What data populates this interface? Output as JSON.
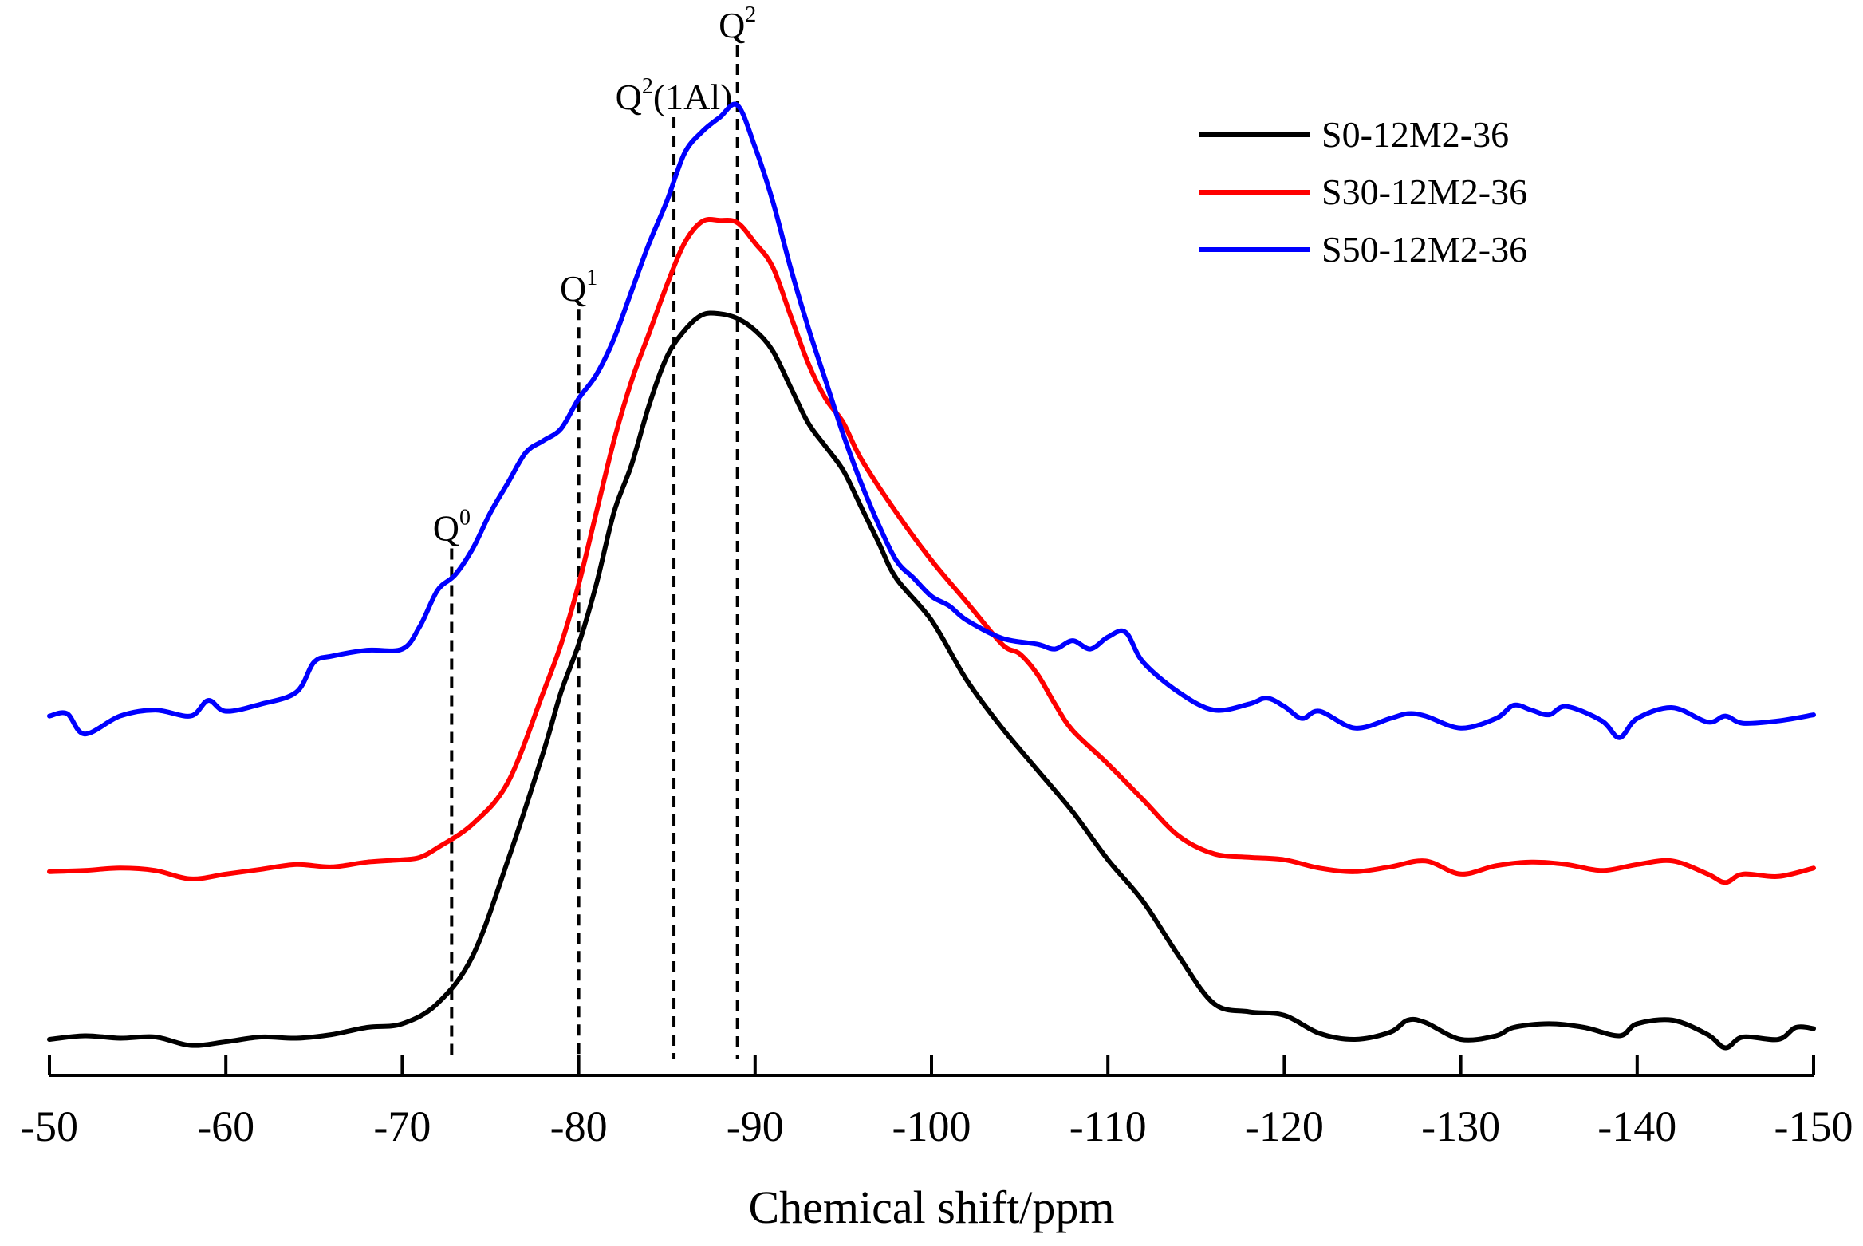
{
  "chart_data": {
    "type": "line",
    "title": "",
    "xlabel": "Chemical shift/ppm",
    "ylabel": "",
    "xlim": [
      -50,
      -150
    ],
    "x_ticks": [
      -50,
      -60,
      -70,
      -80,
      -90,
      -100,
      -110,
      -120,
      -130,
      -140,
      -150
    ],
    "x_tick_labels": [
      "-50",
      "-60",
      "-70",
      "-80",
      "-90",
      "-100",
      "-110",
      "-120",
      "-130",
      "-140",
      "-150"
    ],
    "ylim": [
      0,
      85
    ],
    "legend_position": "top-right",
    "series": [
      {
        "name": "S0-12M2-36",
        "color": "#000000",
        "points": [
          [
            -50,
            3
          ],
          [
            -52,
            3.3
          ],
          [
            -54,
            3.1
          ],
          [
            -56,
            3.2
          ],
          [
            -58,
            2.5
          ],
          [
            -60,
            2.8
          ],
          [
            -62,
            3.2
          ],
          [
            -64,
            3.1
          ],
          [
            -66,
            3.4
          ],
          [
            -68,
            4
          ],
          [
            -70,
            4.3
          ],
          [
            -72,
            6
          ],
          [
            -74,
            10
          ],
          [
            -76,
            18
          ],
          [
            -78,
            27
          ],
          [
            -79,
            32
          ],
          [
            -80,
            36
          ],
          [
            -81,
            41
          ],
          [
            -82,
            47
          ],
          [
            -83,
            51
          ],
          [
            -84,
            56
          ],
          [
            -85,
            60
          ],
          [
            -86,
            62.2
          ],
          [
            -87,
            63.5
          ],
          [
            -88,
            63.6
          ],
          [
            -89,
            63.2
          ],
          [
            -90,
            62.2
          ],
          [
            -91,
            60.5
          ],
          [
            -92,
            57.5
          ],
          [
            -93,
            54.5
          ],
          [
            -94,
            52.5
          ],
          [
            -95,
            50.5
          ],
          [
            -96,
            47.5
          ],
          [
            -97,
            44.5
          ],
          [
            -98,
            41.5
          ],
          [
            -100,
            38
          ],
          [
            -102,
            33
          ],
          [
            -104,
            29
          ],
          [
            -106,
            25.5
          ],
          [
            -108,
            22
          ],
          [
            -110,
            18
          ],
          [
            -112,
            14.5
          ],
          [
            -114,
            10
          ],
          [
            -116,
            6
          ],
          [
            -118,
            5.3
          ],
          [
            -120,
            5
          ],
          [
            -122,
            3.5
          ],
          [
            -124,
            3
          ],
          [
            -126,
            3.6
          ],
          [
            -127,
            4.6
          ],
          [
            -128,
            4.4
          ],
          [
            -130,
            3
          ],
          [
            -132,
            3.3
          ],
          [
            -133,
            4
          ],
          [
            -135,
            4.3
          ],
          [
            -137,
            4
          ],
          [
            -139,
            3.3
          ],
          [
            -140,
            4.3
          ],
          [
            -142,
            4.6
          ],
          [
            -144,
            3.4
          ],
          [
            -145,
            2.3
          ],
          [
            -146,
            3.2
          ],
          [
            -148,
            3
          ],
          [
            -149,
            4
          ],
          [
            -150,
            3.9
          ]
        ]
      },
      {
        "name": "S30-12M2-36",
        "color": "#ff0000",
        "points": [
          [
            -50,
            17
          ],
          [
            -52,
            17.1
          ],
          [
            -54,
            17.3
          ],
          [
            -56,
            17.1
          ],
          [
            -58,
            16.4
          ],
          [
            -60,
            16.8
          ],
          [
            -62,
            17.2
          ],
          [
            -64,
            17.6
          ],
          [
            -66,
            17.4
          ],
          [
            -68,
            17.8
          ],
          [
            -70,
            18
          ],
          [
            -71,
            18.2
          ],
          [
            -72,
            19
          ],
          [
            -74,
            21
          ],
          [
            -76,
            24.5
          ],
          [
            -78,
            32
          ],
          [
            -79,
            36
          ],
          [
            -80,
            41
          ],
          [
            -81,
            47
          ],
          [
            -82,
            53
          ],
          [
            -83,
            58
          ],
          [
            -84,
            62
          ],
          [
            -85,
            66
          ],
          [
            -86,
            69.5
          ],
          [
            -87,
            71.3
          ],
          [
            -88,
            71.4
          ],
          [
            -89,
            71.2
          ],
          [
            -90,
            69.5
          ],
          [
            -91,
            67.5
          ],
          [
            -92,
            63.5
          ],
          [
            -93,
            59.5
          ],
          [
            -94,
            56.5
          ],
          [
            -95,
            54.5
          ],
          [
            -96,
            51.5
          ],
          [
            -98,
            47
          ],
          [
            -100,
            43
          ],
          [
            -102,
            39.5
          ],
          [
            -104,
            36
          ],
          [
            -105,
            35.2
          ],
          [
            -106,
            33.5
          ],
          [
            -107,
            31
          ],
          [
            -108,
            28.8
          ],
          [
            -110,
            26
          ],
          [
            -112,
            23
          ],
          [
            -114,
            20
          ],
          [
            -116,
            18.5
          ],
          [
            -118,
            18.2
          ],
          [
            -120,
            18
          ],
          [
            -122,
            17.3
          ],
          [
            -124,
            17
          ],
          [
            -126,
            17.4
          ],
          [
            -128,
            17.9
          ],
          [
            -130,
            16.8
          ],
          [
            -132,
            17.5
          ],
          [
            -134,
            17.8
          ],
          [
            -136,
            17.6
          ],
          [
            -138,
            17.1
          ],
          [
            -140,
            17.6
          ],
          [
            -142,
            17.9
          ],
          [
            -144,
            16.8
          ],
          [
            -145,
            16.1
          ],
          [
            -146,
            16.8
          ],
          [
            -148,
            16.6
          ],
          [
            -150,
            17.3
          ]
        ]
      },
      {
        "name": "S50-12M2-36",
        "color": "#0000ff",
        "points": [
          [
            -50,
            30
          ],
          [
            -51,
            30.2
          ],
          [
            -52,
            28.5
          ],
          [
            -54,
            30
          ],
          [
            -56,
            30.5
          ],
          [
            -58,
            30
          ],
          [
            -59,
            31.3
          ],
          [
            -60,
            30.4
          ],
          [
            -62,
            31
          ],
          [
            -64,
            32
          ],
          [
            -65,
            34.5
          ],
          [
            -66,
            35
          ],
          [
            -68,
            35.5
          ],
          [
            -70,
            35.6
          ],
          [
            -71,
            37.5
          ],
          [
            -72,
            40.5
          ],
          [
            -73,
            41.8
          ],
          [
            -74,
            44
          ],
          [
            -75,
            47
          ],
          [
            -76,
            49.5
          ],
          [
            -77,
            52
          ],
          [
            -78,
            53
          ],
          [
            -79,
            54
          ],
          [
            -80,
            56.5
          ],
          [
            -81,
            58.5
          ],
          [
            -82,
            61.5
          ],
          [
            -83,
            65.5
          ],
          [
            -84,
            69.5
          ],
          [
            -85,
            73
          ],
          [
            -86,
            77
          ],
          [
            -87,
            78.8
          ],
          [
            -88,
            80
          ],
          [
            -89,
            81
          ],
          [
            -90,
            77.5
          ],
          [
            -91,
            73
          ],
          [
            -92,
            67.5
          ],
          [
            -93,
            62.5
          ],
          [
            -94,
            58
          ],
          [
            -95,
            53.5
          ],
          [
            -96,
            49.5
          ],
          [
            -97,
            46
          ],
          [
            -98,
            43
          ],
          [
            -99,
            41.5
          ],
          [
            -100,
            40
          ],
          [
            -101,
            39.2
          ],
          [
            -102,
            38
          ],
          [
            -104,
            36.5
          ],
          [
            -106,
            36
          ],
          [
            -107,
            35.6
          ],
          [
            -108,
            36.3
          ],
          [
            -109,
            35.6
          ],
          [
            -110,
            36.6
          ],
          [
            -111,
            37
          ],
          [
            -112,
            34.5
          ],
          [
            -114,
            32
          ],
          [
            -116,
            30.5
          ],
          [
            -118,
            31
          ],
          [
            -119,
            31.5
          ],
          [
            -120,
            30.8
          ],
          [
            -121,
            29.8
          ],
          [
            -122,
            30.4
          ],
          [
            -124,
            29
          ],
          [
            -126,
            29.8
          ],
          [
            -127,
            30.2
          ],
          [
            -128,
            30
          ],
          [
            -130,
            29
          ],
          [
            -132,
            29.8
          ],
          [
            -133,
            30.9
          ],
          [
            -134,
            30.5
          ],
          [
            -135,
            30.1
          ],
          [
            -136,
            30.8
          ],
          [
            -138,
            29.6
          ],
          [
            -139,
            28.2
          ],
          [
            -140,
            29.8
          ],
          [
            -142,
            30.7
          ],
          [
            -144,
            29.5
          ],
          [
            -145,
            30
          ],
          [
            -146,
            29.4
          ],
          [
            -148,
            29.6
          ],
          [
            -150,
            30.1
          ]
        ]
      }
    ],
    "reference_lines": [
      {
        "label": "Q0",
        "base": "Q",
        "sup": "0",
        "x": -72.8,
        "y_top": 44
      },
      {
        "label": "Q1",
        "base": "Q",
        "sup": "1",
        "x": -80,
        "y_top": 64
      },
      {
        "label": "Q2(1Al)",
        "base": "Q",
        "sup": "2",
        "suffix": "(1Al)",
        "x": -85.4,
        "y_top": 80
      },
      {
        "label": "Q2",
        "base": "Q",
        "sup": "2",
        "x": -89,
        "y_top": 86
      }
    ]
  }
}
